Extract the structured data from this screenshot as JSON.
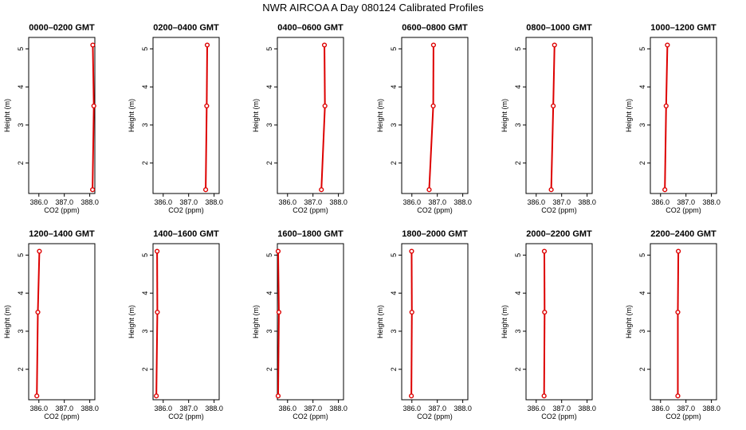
{
  "title": "NWR AIRCOA A  Day 080124  Calibrated Profiles",
  "colors": {
    "profile": "#dd0000",
    "frame": "#000000",
    "background": "#ffffff"
  },
  "chart_data": {
    "type": "line",
    "title": "NWR AIRCOA A  Day 080124  Calibrated Profiles",
    "xlabel": "CO2 (ppm)",
    "ylabel": "Height (m)",
    "xlim": [
      385.6,
      388.2
    ],
    "ylim": [
      1.2,
      5.3
    ],
    "xticks": [
      "386.0",
      "387.0",
      "388.0"
    ],
    "yticks": [
      "2",
      "3",
      "4",
      "5"
    ],
    "grid": false,
    "panels": [
      {
        "title": "0000–0200 GMT",
        "points": [
          {
            "x": 388.11,
            "y": 1.3
          },
          {
            "x": 388.16,
            "y": 3.5
          },
          {
            "x": 388.12,
            "y": 5.1
          }
        ]
      },
      {
        "title": "0200–0400 GMT",
        "points": [
          {
            "x": 387.67,
            "y": 1.3
          },
          {
            "x": 387.71,
            "y": 3.5
          },
          {
            "x": 387.73,
            "y": 5.1
          }
        ]
      },
      {
        "title": "0400–0600 GMT",
        "points": [
          {
            "x": 387.33,
            "y": 1.3
          },
          {
            "x": 387.47,
            "y": 3.5
          },
          {
            "x": 387.45,
            "y": 5.1
          }
        ]
      },
      {
        "title": "0600–0800 GMT",
        "points": [
          {
            "x": 386.68,
            "y": 1.3
          },
          {
            "x": 386.84,
            "y": 3.5
          },
          {
            "x": 386.85,
            "y": 5.1
          }
        ]
      },
      {
        "title": "0800–1000 GMT",
        "points": [
          {
            "x": 386.59,
            "y": 1.3
          },
          {
            "x": 386.67,
            "y": 3.5
          },
          {
            "x": 386.72,
            "y": 5.1
          }
        ]
      },
      {
        "title": "1000–1200 GMT",
        "points": [
          {
            "x": 386.17,
            "y": 1.3
          },
          {
            "x": 386.22,
            "y": 3.5
          },
          {
            "x": 386.27,
            "y": 5.1
          }
        ]
      },
      {
        "title": "1200–1400 GMT",
        "points": [
          {
            "x": 385.92,
            "y": 1.3
          },
          {
            "x": 385.96,
            "y": 3.5
          },
          {
            "x": 386.02,
            "y": 5.1
          }
        ]
      },
      {
        "title": "1400–1600 GMT",
        "points": [
          {
            "x": 385.73,
            "y": 1.3
          },
          {
            "x": 385.77,
            "y": 3.5
          },
          {
            "x": 385.76,
            "y": 5.1
          }
        ]
      },
      {
        "title": "1600–1800 GMT",
        "points": [
          {
            "x": 385.63,
            "y": 1.3
          },
          {
            "x": 385.66,
            "y": 3.5
          },
          {
            "x": 385.63,
            "y": 5.1
          }
        ]
      },
      {
        "title": "1800–2000 GMT",
        "points": [
          {
            "x": 385.98,
            "y": 1.3
          },
          {
            "x": 386.0,
            "y": 3.5
          },
          {
            "x": 385.99,
            "y": 5.1
          }
        ]
      },
      {
        "title": "2000–2200 GMT",
        "points": [
          {
            "x": 386.31,
            "y": 1.3
          },
          {
            "x": 386.33,
            "y": 3.5
          },
          {
            "x": 386.32,
            "y": 5.1
          }
        ]
      },
      {
        "title": "2200–2400 GMT",
        "points": [
          {
            "x": 386.68,
            "y": 1.3
          },
          {
            "x": 386.68,
            "y": 3.5
          },
          {
            "x": 386.7,
            "y": 5.1
          }
        ]
      }
    ]
  }
}
